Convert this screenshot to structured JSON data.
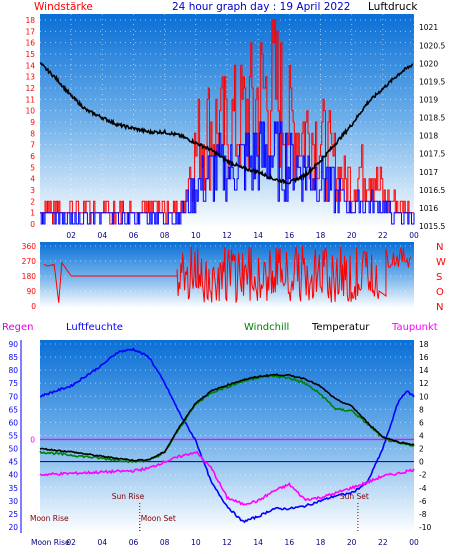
{
  "header": {
    "left_label": "Windstärke",
    "title": "24 hour graph day : 19 April 2022",
    "right_label": "Luftdruck"
  },
  "colors": {
    "wind_avg": "#ff0000",
    "wind_gust": "#0000ff",
    "pressure": "#000000",
    "direction": "#ff0000",
    "humidity": "#0000ff",
    "windchill": "#008000",
    "temperature": "#000000",
    "dewpoint": "#ff00ff",
    "rain_axis": "#0000ff",
    "sky_top": "#0a6fd6",
    "sky_bottom": "#ffffff"
  },
  "chart_data": [
    {
      "type": "bar",
      "name": "wind-pressure",
      "x_ticks": [
        "02",
        "04",
        "06",
        "08",
        "10",
        "12",
        "14",
        "16",
        "18",
        "20",
        "22",
        "00"
      ],
      "wind_axis": {
        "range": [
          0,
          18
        ],
        "ticks": [
          "0",
          "1",
          "2",
          "3",
          "4",
          "5",
          "6",
          "7",
          "8",
          "9",
          "10",
          "11",
          "12",
          "13",
          "14",
          "15",
          "16",
          "17",
          "18"
        ]
      },
      "pressure_axis": {
        "range": [
          1015.5,
          1021.2
        ],
        "ticks": [
          "1015.5",
          "1016",
          "1016.5",
          "1017",
          "1017.5",
          "1018",
          "1018.5",
          "1019",
          "1019.5",
          "1020",
          "1020.5",
          "1021"
        ]
      },
      "pressure_series": {
        "hours": [
          0,
          1,
          2,
          3,
          4,
          5,
          6,
          7,
          8,
          9,
          10,
          11,
          12,
          13,
          14,
          15,
          16,
          17,
          18,
          19,
          20,
          21,
          22,
          23,
          24
        ],
        "values": [
          1020.0,
          1019.6,
          1019.1,
          1018.7,
          1018.5,
          1018.3,
          1018.2,
          1018.1,
          1018.1,
          1018.0,
          1017.8,
          1017.6,
          1017.3,
          1017.1,
          1017.0,
          1016.8,
          1016.7,
          1016.9,
          1017.3,
          1017.8,
          1018.3,
          1018.9,
          1019.3,
          1019.7,
          1020.0
        ]
      },
      "wind_gust_peak": {
        "hours": [
          0,
          8,
          9,
          10,
          11,
          12,
          13,
          14,
          15,
          16,
          17,
          18,
          19,
          20,
          21,
          22,
          23,
          24
        ],
        "values": [
          2,
          2,
          2,
          10,
          13,
          12,
          14,
          16,
          18,
          13,
          12,
          11,
          7,
          5,
          8,
          4,
          2,
          2
        ]
      },
      "wind_avg_peak": {
        "hours": [
          0,
          8,
          9,
          10,
          11,
          12,
          13,
          14,
          15,
          16,
          17,
          18,
          19,
          20,
          21,
          22,
          23,
          24
        ],
        "values": [
          1,
          1,
          1,
          5,
          7,
          7,
          8,
          9,
          9,
          8,
          7,
          6,
          4,
          2,
          3,
          2,
          1,
          1
        ]
      }
    },
    {
      "type": "line",
      "name": "wind-direction",
      "y_ticks": [
        "0",
        "90",
        "180",
        "270",
        "360"
      ],
      "y_range": [
        0,
        360
      ],
      "compass_labels": [
        "N",
        "W",
        "S",
        "O",
        "N"
      ],
      "direction_series": {
        "hours": [
          0,
          1,
          2,
          3,
          4,
          5,
          6,
          7,
          8,
          9,
          24
        ],
        "values": [
          240,
          240,
          180,
          180,
          180,
          180,
          180,
          180,
          180,
          180,
          300
        ]
      }
    },
    {
      "type": "line",
      "name": "temperature-humidity",
      "legend": [
        "Regen",
        "Luftfeuchte",
        "Windchill",
        "Temperatur",
        "Taupunkt"
      ],
      "humidity_axis": {
        "range": [
          20,
          90
        ],
        "ticks": [
          "20",
          "25",
          "30",
          "35",
          "40",
          "45",
          "50",
          "55",
          "60",
          "65",
          "70",
          "75",
          "80",
          "85",
          "90"
        ]
      },
      "temperature_axis": {
        "range": [
          -10,
          18
        ],
        "ticks": [
          "-10",
          "-8",
          "-6",
          "-4",
          "-2",
          "0",
          "2",
          "4",
          "6",
          "8",
          "10",
          "12",
          "14",
          "16",
          "18"
        ]
      },
      "rain_axis": {
        "ticks": [
          "0"
        ]
      },
      "x_ticks": [
        "Moon Rise",
        "02",
        "04",
        "06",
        "08",
        "10",
        "12",
        "14",
        "16",
        "18",
        "20",
        "22",
        "00"
      ],
      "annotations": [
        {
          "label": "Sun Rise",
          "hour": 6.4
        },
        {
          "label": "Sun Set",
          "hour": 20.4
        },
        {
          "label": "Moon Rise",
          "hour": 0.2
        },
        {
          "label": "Moon Set",
          "hour": 6.4
        }
      ],
      "temperature": {
        "hours": [
          0,
          2,
          4,
          6,
          7,
          8,
          9,
          10,
          11,
          12,
          13,
          14,
          15,
          16,
          17,
          18,
          19,
          20,
          21,
          22,
          23,
          24
        ],
        "values": [
          2.0,
          1.5,
          0.8,
          0.2,
          0.3,
          1.5,
          5.5,
          9.0,
          10.8,
          11.7,
          12.5,
          13.0,
          13.3,
          13.2,
          12.7,
          11.5,
          9.5,
          8.5,
          6.0,
          3.8,
          3.0,
          2.6
        ]
      },
      "windchill": {
        "hours": [
          0,
          2,
          4,
          6,
          7,
          8,
          9,
          10,
          11,
          12,
          13,
          14,
          15,
          16,
          17,
          18,
          19,
          20,
          21,
          22,
          23,
          24
        ],
        "values": [
          1.5,
          1.0,
          0.5,
          0.0,
          0.2,
          1.4,
          5.3,
          8.8,
          10.6,
          11.4,
          12.3,
          12.9,
          13.1,
          12.8,
          12.0,
          10.3,
          8.0,
          7.8,
          5.8,
          3.6,
          2.8,
          2.5
        ]
      },
      "dewpoint": {
        "hours": [
          0,
          2,
          4,
          6,
          7,
          8,
          9,
          10,
          11,
          12,
          13,
          14,
          15,
          16,
          17,
          18,
          19,
          20,
          21,
          22,
          23,
          24
        ],
        "values": [
          -2.0,
          -1.8,
          -1.6,
          -1.4,
          -1.0,
          0.0,
          0.8,
          1.5,
          -1.0,
          -5.5,
          -6.5,
          -6.0,
          -4.5,
          -3.5,
          -5.8,
          -5.5,
          -4.8,
          -4.0,
          -3.2,
          -2.2,
          -1.8,
          -1.2
        ]
      },
      "humidity": {
        "hours": [
          0,
          2,
          4,
          5,
          6,
          7,
          8,
          9,
          10,
          11,
          12,
          13,
          14,
          15,
          16,
          17,
          18,
          19,
          20,
          21,
          22,
          23,
          23.5,
          24
        ],
        "values": [
          70,
          74,
          82,
          87,
          88,
          85,
          75,
          63,
          53,
          37,
          28,
          22,
          24,
          27,
          27,
          28,
          30,
          32,
          33,
          37,
          50,
          68,
          72,
          70
        ]
      },
      "rain_level_hum": 53.5
    }
  ]
}
